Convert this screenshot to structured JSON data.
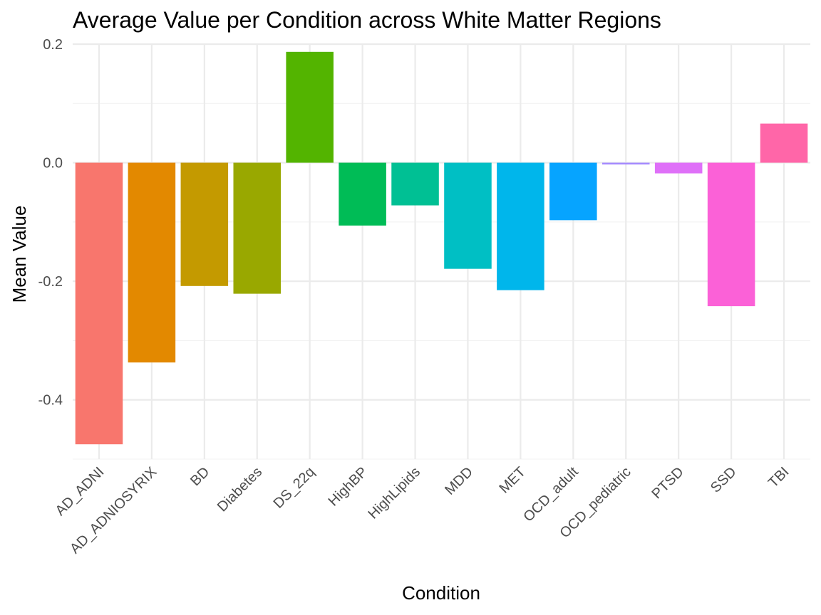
{
  "chart_data": {
    "type": "bar",
    "title": "Average Value per Condition across White Matter Regions",
    "xlabel": "Condition",
    "ylabel": "Mean Value",
    "ylim": [
      -0.5,
      0.2
    ],
    "yticks": [
      0.2,
      0.0,
      -0.2,
      -0.4
    ],
    "ytick_labels": [
      "0.2",
      "0.0",
      "-0.2",
      "-0.4"
    ],
    "grid": true,
    "legend": "none",
    "categories": [
      "AD_ADNI",
      "AD_ADNIOSYRIX",
      "BD",
      "Diabetes",
      "DS_22q",
      "HighBP",
      "HighLipids",
      "MDD",
      "MET",
      "OCD_adult",
      "OCD_pediatric",
      "PTSD",
      "SSD",
      "TBI"
    ],
    "values": [
      -0.475,
      -0.337,
      -0.208,
      -0.221,
      0.187,
      -0.106,
      -0.072,
      -0.179,
      -0.215,
      -0.097,
      -0.003,
      -0.018,
      -0.242,
      0.066
    ],
    "colors": [
      "#F8766D",
      "#E38900",
      "#C49A00",
      "#99A800",
      "#53B400",
      "#00BC56",
      "#00C094",
      "#00BFC4",
      "#00B6EB",
      "#06A4FF",
      "#A58AFF",
      "#DF70F8",
      "#FB61D7",
      "#FF66A8"
    ]
  }
}
